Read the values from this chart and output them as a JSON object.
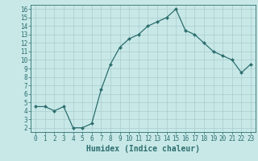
{
  "x": [
    0,
    1,
    2,
    3,
    4,
    5,
    6,
    7,
    8,
    9,
    10,
    11,
    12,
    13,
    14,
    15,
    16,
    17,
    18,
    19,
    20,
    21,
    22,
    23
  ],
  "y": [
    4.5,
    4.5,
    4.0,
    4.5,
    2.0,
    2.0,
    2.5,
    6.5,
    9.5,
    11.5,
    12.5,
    13.0,
    14.0,
    14.5,
    15.0,
    16.0,
    13.5,
    13.0,
    12.0,
    11.0,
    10.5,
    10.0,
    8.5,
    9.5
  ],
  "line_color": "#2d6e6e",
  "marker": "D",
  "marker_size": 2.0,
  "bg_color": "#c8e8e8",
  "grid_color": "#aacccc",
  "xlabel": "Humidex (Indice chaleur)",
  "xlabel_fontsize": 7,
  "tick_fontsize": 5.5,
  "xlim": [
    -0.5,
    23.5
  ],
  "ylim": [
    1.5,
    16.5
  ],
  "yticks": [
    2,
    3,
    4,
    5,
    6,
    7,
    8,
    9,
    10,
    11,
    12,
    13,
    14,
    15,
    16
  ],
  "xticks": [
    0,
    1,
    2,
    3,
    4,
    5,
    6,
    7,
    8,
    9,
    10,
    11,
    12,
    13,
    14,
    15,
    16,
    17,
    18,
    19,
    20,
    21,
    22,
    23
  ]
}
